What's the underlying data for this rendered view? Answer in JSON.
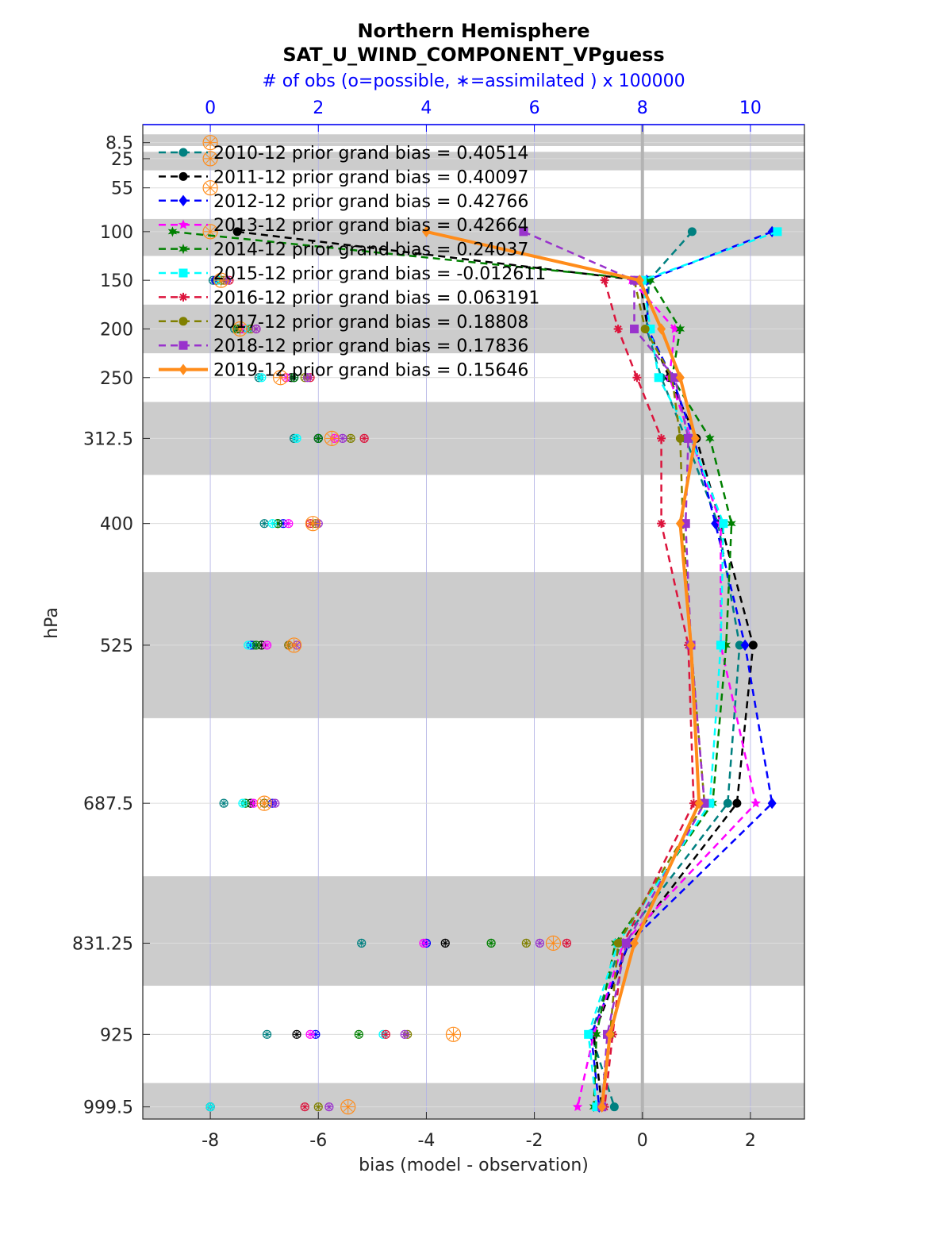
{
  "chart_data": {
    "type": "line",
    "title": "Northern Hemisphere",
    "subtitle": "SAT_U_WIND_COMPONENT_VPguess",
    "top_axis_label": "# of obs (o=possible, ∗=assimilated ) x 100000",
    "xlabel": "bias (model - observation)",
    "ylabel": "hPa",
    "xlim": [
      -9.25,
      3.0
    ],
    "x_ticks": [
      "-8",
      "-6",
      "-4",
      "-2",
      "0",
      "2"
    ],
    "top_xlim": [
      -1.25,
      11.0
    ],
    "top_ticks": [
      "0",
      "2",
      "4",
      "6",
      "8",
      "10"
    ],
    "levels": [
      8.5,
      25,
      55,
      100,
      150,
      200,
      250,
      312.5,
      400,
      525,
      687.5,
      831.25,
      925,
      999.5
    ],
    "level_labels": [
      "8.5",
      "25",
      "55",
      "100",
      "150",
      "200",
      "250",
      "312.5",
      "400",
      "525",
      "687.5",
      "831.25",
      "925",
      "999.5"
    ],
    "shaded_bands": [
      [
        0,
        12
      ],
      [
        18,
        37
      ],
      [
        87,
        125
      ],
      [
        175,
        225
      ],
      [
        275,
        350
      ],
      [
        450,
        600
      ],
      [
        762.5,
        875
      ],
      [
        975,
        1012
      ]
    ],
    "ylim": [
      -10,
      1012
    ],
    "legend_placement": "top-left",
    "colors": {
      "axis": "#262626",
      "top_axis": "#0000ff",
      "band": "#cccccc",
      "zero_line": "#b3b3b3",
      "vgrid": "#b3b3e6"
    },
    "series": [
      {
        "label": "2010-12 prior grand bias = 0.40514",
        "color": "#008080",
        "marker": "circle",
        "dash": true,
        "width": 2.5,
        "bias": [
          null,
          null,
          null,
          0.92,
          0.12,
          0.08,
          0.35,
          0.8,
          1.4,
          1.8,
          1.58,
          -0.4,
          -0.95,
          -0.52
        ],
        "obs": [
          null,
          null,
          null,
          null,
          0.05,
          0.45,
          0.9,
          1.55,
          1.0,
          0.8,
          0.25,
          2.8,
          1.05,
          0.0
        ]
      },
      {
        "label": "2011-12 prior grand bias = 0.40097",
        "color": "#000000",
        "marker": "circle",
        "dash": true,
        "width": 2.5,
        "bias": [
          null,
          null,
          null,
          -7.5,
          -0.05,
          0.1,
          0.5,
          1.0,
          1.45,
          2.05,
          1.75,
          -0.25,
          -0.9,
          -0.75
        ],
        "obs": [
          null,
          null,
          null,
          null,
          0.1,
          0.55,
          1.5,
          2.0,
          1.25,
          0.95,
          0.75,
          4.35,
          1.6,
          0.0
        ]
      },
      {
        "label": "2012-12 prior grand bias = 0.42766",
        "color": "#0000ff",
        "marker": "diamond",
        "dash": true,
        "width": 2.5,
        "bias": [
          null,
          null,
          null,
          2.4,
          0.08,
          0.1,
          0.55,
          0.95,
          1.35,
          1.9,
          2.4,
          -0.25,
          -0.95,
          -0.8
        ],
        "obs": [
          null,
          null,
          null,
          null,
          0.1,
          0.7,
          1.55,
          2.0,
          1.35,
          0.75,
          1.15,
          4.0,
          1.95,
          0.0
        ]
      },
      {
        "label": "2013-12 prior grand bias = 0.42664",
        "color": "#ff00ff",
        "marker": "star",
        "dash": true,
        "width": 2.5,
        "bias": [
          null,
          null,
          null,
          null,
          -0.2,
          0.6,
          0.5,
          0.9,
          1.45,
          1.45,
          2.1,
          -0.35,
          -0.9,
          -1.2
        ],
        "obs": [
          null,
          null,
          null,
          null,
          0.2,
          0.6,
          1.4,
          2.3,
          1.45,
          1.05,
          0.8,
          3.95,
          1.85,
          0.0
        ]
      },
      {
        "label": "2014-12 prior grand bias = 0.24037",
        "color": "#008000",
        "marker": "hexagram",
        "dash": true,
        "width": 2.5,
        "bias": [
          null,
          null,
          null,
          -8.7,
          0.15,
          0.7,
          0.55,
          1.25,
          1.65,
          1.55,
          1.3,
          -0.5,
          -0.85,
          -0.9
        ],
        "obs": [
          null,
          null,
          null,
          null,
          0.2,
          0.5,
          1.55,
          2.0,
          1.25,
          0.85,
          0.65,
          5.2,
          2.75,
          0.0
        ]
      },
      {
        "label": "2015-12 prior grand bias = -0.012611",
        "color": "#00ffff",
        "marker": "square",
        "dash": true,
        "width": 2.5,
        "bias": [
          null,
          null,
          null,
          2.5,
          0.0,
          0.15,
          0.3,
          0.9,
          1.5,
          1.45,
          1.25,
          -0.45,
          -1.0,
          -0.85
        ],
        "obs": [
          null,
          null,
          null,
          null,
          0.15,
          0.7,
          0.95,
          1.6,
          1.15,
          0.7,
          0.6,
          7.8,
          3.2,
          0.0
        ]
      },
      {
        "label": "2016-12 prior grand bias = 0.063191",
        "color": "#dc143c",
        "marker": "asterisk",
        "dash": true,
        "width": 2.5,
        "bias": [
          null,
          null,
          null,
          null,
          -0.7,
          -0.45,
          -0.1,
          0.35,
          0.35,
          0.85,
          0.95,
          -0.35,
          -0.55,
          -0.7
        ],
        "obs": [
          null,
          null,
          null,
          null,
          0.35,
          0.85,
          1.85,
          2.85,
          1.85,
          1.45,
          1.0,
          6.6,
          3.25,
          1.75
        ]
      },
      {
        "label": "2017-12 prior grand bias = 0.18808",
        "color": "#808000",
        "marker": "circle",
        "dash": true,
        "width": 2.5,
        "bias": [
          null,
          null,
          null,
          null,
          -0.15,
          0.05,
          0.55,
          0.7,
          0.75,
          0.9,
          1.15,
          -0.45,
          -0.6,
          -0.75
        ],
        "obs": [
          null,
          null,
          null,
          null,
          0.25,
          0.75,
          1.75,
          2.6,
          1.95,
          1.45,
          1.0,
          5.85,
          3.65,
          2.0
        ]
      },
      {
        "label": "2018-12 prior grand bias = 0.17836",
        "color": "#9932cc",
        "marker": "square",
        "dash": true,
        "width": 2.5,
        "bias": [
          null,
          null,
          null,
          -2.2,
          -0.15,
          -0.15,
          0.6,
          0.85,
          0.8,
          0.9,
          1.15,
          -0.3,
          -0.65,
          -0.75
        ],
        "obs": [
          null,
          null,
          null,
          null,
          0.3,
          0.85,
          1.8,
          2.45,
          2.0,
          1.6,
          1.2,
          6.1,
          3.6,
          2.2
        ]
      },
      {
        "label": "2019-12 prior grand bias = 0.15646",
        "color": "#ff8c1a",
        "marker": "diamond",
        "dash": false,
        "width": 4,
        "bias": [
          null,
          null,
          null,
          -4.0,
          -0.05,
          0.35,
          0.7,
          0.98,
          0.7,
          0.9,
          1.05,
          -0.15,
          -0.6,
          -0.75
        ],
        "obs": [
          0.0,
          0.0,
          0.0,
          0.0,
          0.2,
          0.55,
          1.3,
          2.25,
          1.9,
          1.55,
          1.0,
          6.35,
          4.5,
          2.55
        ]
      }
    ]
  }
}
